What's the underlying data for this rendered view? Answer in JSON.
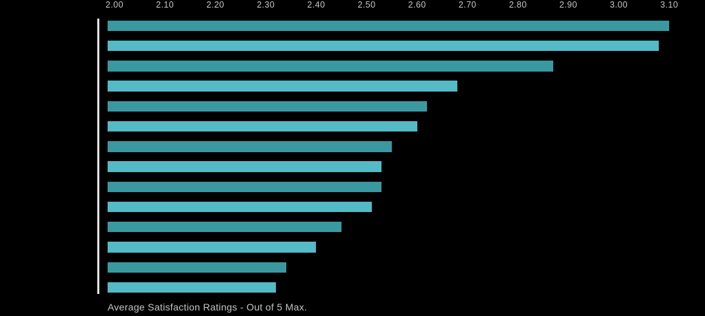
{
  "chart_data": {
    "type": "bar",
    "orientation": "horizontal",
    "title": "Average Satisfaction Ratings - Out of 5 Max.",
    "x_ticks": [
      "2.00",
      "2.10",
      "2.20",
      "2.30",
      "2.40",
      "2.50",
      "2.60",
      "2.70",
      "2.80",
      "2.90",
      "3.00",
      "3.10"
    ],
    "xlim": [
      1.985,
      3.17
    ],
    "values": [
      3.1,
      3.08,
      2.87,
      2.68,
      2.62,
      2.6,
      2.55,
      2.53,
      2.53,
      2.51,
      2.45,
      2.4,
      2.34,
      2.32
    ],
    "category_labels_visible": false,
    "legend": "none",
    "grid": "off",
    "axis_label_position": "top"
  },
  "colors": {
    "background": "#000000",
    "bar_alternate": [
      "#3a99a0",
      "#53bac6"
    ],
    "axis_line": "#e2e2e2",
    "tick_label": "#c6c6c6",
    "title_text": "#c6c6c6"
  }
}
